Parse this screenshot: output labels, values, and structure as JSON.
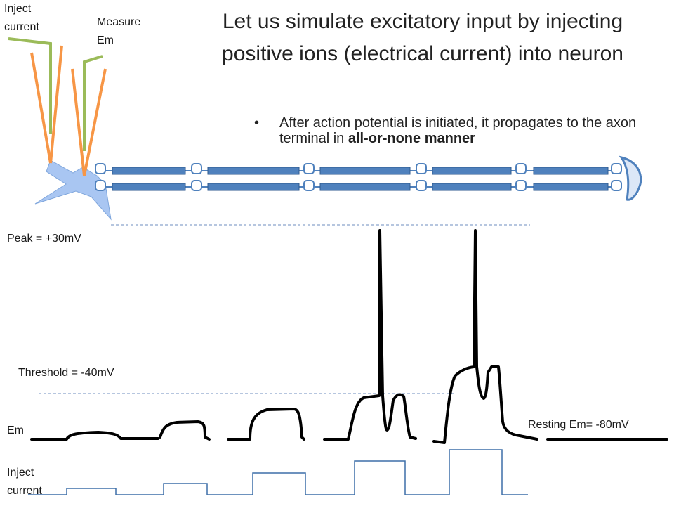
{
  "slide": {
    "title_line1": "Let us simulate excitatory input by injecting",
    "title_line2": "positive ions (electrical current) into neuron",
    "bullet_text": "After action potential is initiated, it propagates to the axon terminal in ",
    "bullet_bold": "all-or-none manner"
  },
  "electrodes": {
    "inject_line1": "Inject",
    "inject_line2": "current",
    "measure_line1": "Measure",
    "measure_line2": "Em"
  },
  "trace_labels": {
    "peak": "Peak = +30mV",
    "threshold": "Threshold = -40mV",
    "em": "Em",
    "resting": "Resting Em= -80mV",
    "inject_line1": "Inject",
    "inject_line2": "current"
  },
  "colors": {
    "axon_blue": "#4f81bd",
    "axon_outline": "#2f5a8f",
    "neuron_fill": "#a9c6f2",
    "electrode_orange": "#f79646",
    "electrode_green": "#9bbb59",
    "dashed_line": "#6c8ebf",
    "stimulus_line": "#3d6fa8",
    "trace_black": "#000000"
  }
}
